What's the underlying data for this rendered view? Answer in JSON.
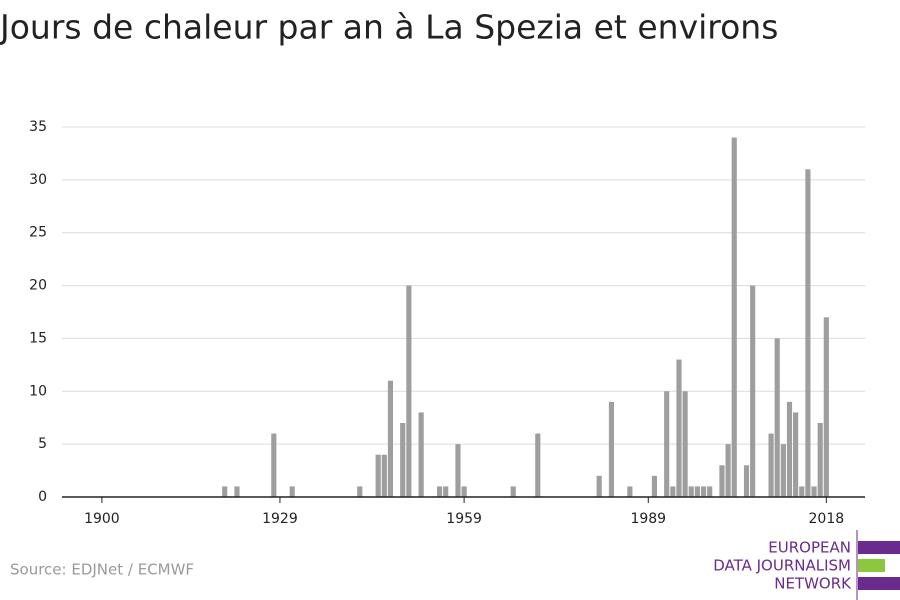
{
  "chart_data": {
    "type": "bar",
    "title": "Jours de chaleur par an à La Spezia et environs",
    "source": "Source: EDJNet / ECMWF",
    "logo": [
      "EUROPEAN",
      "DATA JOURNALISM",
      "NETWORK"
    ],
    "color": "#9e9e9e",
    "x": [
      1920,
      1922,
      1928,
      1931,
      1942,
      1945,
      1946,
      1947,
      1949,
      1950,
      1952,
      1955,
      1956,
      1958,
      1959,
      1967,
      1971,
      1981,
      1983,
      1986,
      1990,
      1992,
      1993,
      1994,
      1995,
      1996,
      1997,
      1998,
      1999,
      2001,
      2002,
      2003,
      2005,
      2006,
      2009,
      2010,
      2011,
      2012,
      2013,
      2014,
      2015,
      2016,
      2017,
      2018
    ],
    "values": [
      1,
      1,
      6,
      1,
      1,
      4,
      4,
      11,
      7,
      20,
      8,
      1,
      1,
      5,
      1,
      1,
      6,
      2,
      9,
      1,
      2,
      10,
      1,
      13,
      10,
      1,
      1,
      1,
      1,
      3,
      5,
      34,
      3,
      20,
      6,
      15,
      5,
      9,
      8,
      1,
      31,
      1,
      7,
      17
    ],
    "xlim": [
      1893.5,
      2024.3
    ],
    "xticks": [
      1900,
      1929,
      1959,
      1989,
      2018
    ],
    "ylim": [
      0,
      35
    ],
    "yticks": [
      0,
      5,
      10,
      15,
      20,
      25,
      30,
      35
    ],
    "grid": true
  }
}
